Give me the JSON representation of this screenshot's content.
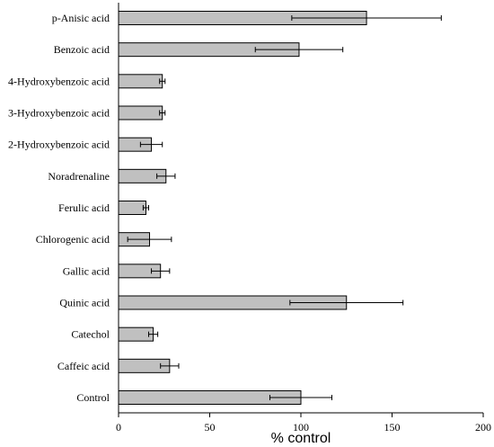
{
  "chart_data": {
    "type": "bar",
    "orientation": "horizontal",
    "title": "",
    "xlabel": "% control",
    "ylabel": "",
    "xlim": [
      0,
      200
    ],
    "xticks": [
      0,
      50,
      100,
      150,
      200
    ],
    "grid": false,
    "bar_color": "#c0c0c0",
    "categories": [
      "p-Anisic acid",
      "Benzoic acid",
      "4-Hydroxybenzoic acid",
      "3-Hydroxybenzoic acid",
      "2-Hydroxybenzoic acid",
      "Noradrenaline",
      "Ferulic acid",
      "Chlorogenic acid",
      "Gallic acid",
      "Quinic acid",
      "Catechol",
      "Caffeic acid",
      "Control"
    ],
    "values": [
      136,
      99,
      24,
      24,
      18,
      26,
      15,
      17,
      23,
      125,
      19,
      28,
      100
    ],
    "errors": [
      41,
      24,
      1.5,
      1.5,
      6,
      5,
      1.5,
      12,
      5,
      31,
      2.5,
      5,
      17
    ]
  }
}
